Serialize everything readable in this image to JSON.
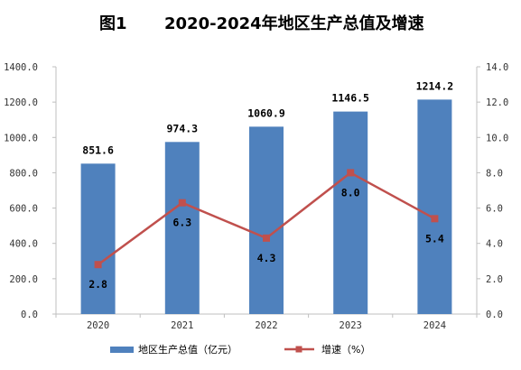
{
  "chart_data": {
    "type": "bar",
    "title_label": "图1",
    "title": "2020-2024年地区生产总值及增速",
    "categories": [
      "2020",
      "2021",
      "2022",
      "2023",
      "2024"
    ],
    "series": [
      {
        "name": "地区生产总值（亿元）",
        "type": "bar",
        "axis": "left",
        "values": [
          851.6,
          974.3,
          1060.9,
          1146.5,
          1214.2
        ],
        "labels": [
          "851.6",
          "974.3",
          "1060.9",
          "1146.5",
          "1214.2"
        ],
        "color": "#4F81BD"
      },
      {
        "name": "增速（%）",
        "type": "line",
        "axis": "right",
        "values": [
          2.8,
          6.3,
          4.3,
          8.0,
          5.4
        ],
        "labels": [
          "2.8",
          "6.3",
          "4.3",
          "8.0",
          "5.4"
        ],
        "color": "#C0504D"
      }
    ],
    "ylim_left": [
      0,
      1400
    ],
    "ylim_right": [
      0,
      14
    ],
    "yticks_left": [
      "0.0",
      "200.0",
      "400.0",
      "600.0",
      "800.0",
      "1000.0",
      "1200.0",
      "1400.0"
    ],
    "yticks_right": [
      "0.0",
      "2.0",
      "4.0",
      "6.0",
      "8.0",
      "10.0",
      "12.0",
      "14.0"
    ],
    "grid": false,
    "legend_position": "bottom"
  }
}
